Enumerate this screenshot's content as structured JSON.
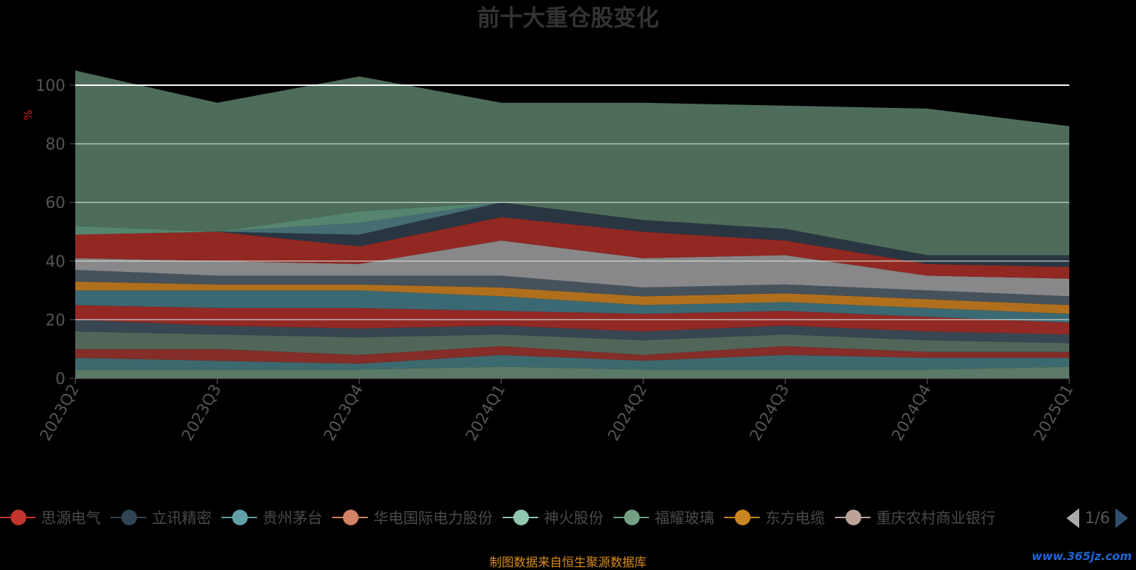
{
  "chart_data": {
    "type": "area",
    "title": "前十大重仓股变化",
    "ylabel": "%",
    "ylim": [
      0,
      100
    ],
    "yticks": [
      0,
      20,
      40,
      60,
      80,
      100
    ],
    "grid": true,
    "legend_position": "bottom",
    "x": [
      "2023Q2",
      "2023Q3",
      "2023Q4",
      "2024Q1",
      "2024Q2",
      "2024Q3",
      "2024Q4",
      "2025Q1"
    ],
    "series": [
      {
        "name": "",
        "color": "#5f7f6b",
        "values": [
          3,
          3,
          3,
          4,
          3,
          3,
          3,
          4
        ]
      },
      {
        "name": "",
        "color": "#3f6f74",
        "values": [
          4,
          3,
          2,
          4,
          3,
          5,
          4,
          3
        ]
      },
      {
        "name": "",
        "color": "#8b2f2b",
        "values": [
          3,
          4,
          3,
          3,
          2,
          3,
          2,
          2
        ]
      },
      {
        "name": "",
        "color": "#556b5e",
        "values": [
          6,
          5,
          6,
          4,
          5,
          4,
          4,
          3
        ]
      },
      {
        "name": "",
        "color": "#3b4a55",
        "values": [
          4,
          3,
          3,
          3,
          3,
          3,
          3,
          3
        ]
      },
      {
        "name": "",
        "color": "#9a2b27",
        "values": [
          5,
          6,
          7,
          5,
          6,
          5,
          5,
          4
        ]
      },
      {
        "name": "",
        "color": "#3d6f7a",
        "values": [
          5,
          6,
          6,
          5,
          3,
          3,
          3,
          3
        ]
      },
      {
        "name": "",
        "color": "#b9751f",
        "values": [
          3,
          2,
          2,
          3,
          3,
          3,
          3,
          3
        ]
      },
      {
        "name": "",
        "color": "#4a5660",
        "values": [
          4,
          3,
          3,
          4,
          3,
          3,
          3,
          3
        ]
      },
      {
        "name": "",
        "color": "#8f8e90",
        "values": [
          4,
          5,
          4,
          12,
          10,
          10,
          5,
          6
        ]
      },
      {
        "name": "",
        "color": "#9a2a24",
        "values": [
          8,
          10,
          6,
          8,
          9,
          5,
          4,
          4
        ]
      },
      {
        "name": "",
        "color": "#2b3945",
        "values": [
          0,
          0,
          4,
          5,
          4,
          4,
          3,
          4
        ]
      },
      {
        "name": "",
        "color": "#4a737a",
        "values": [
          0,
          0,
          4,
          0,
          0,
          0,
          0,
          0
        ]
      },
      {
        "name": "",
        "color": "#5a8c74",
        "values": [
          3,
          0,
          4,
          0,
          0,
          0,
          0,
          0
        ]
      },
      {
        "name": "",
        "color": "#52725f",
        "values": [
          53,
          44,
          46,
          34,
          40,
          42,
          50,
          44
        ]
      }
    ],
    "legend": [
      {
        "label": "思源电气",
        "color": "#c23531"
      },
      {
        "label": "立讯精密",
        "color": "#2f4554"
      },
      {
        "label": "贵州茅台",
        "color": "#61a0a8"
      },
      {
        "label": "华电国际电力股份",
        "color": "#d48265"
      },
      {
        "label": "神火股份",
        "color": "#91c7ae"
      },
      {
        "label": "福耀玻璃",
        "color": "#749f83"
      },
      {
        "label": "东方电缆",
        "color": "#ca8622"
      },
      {
        "label": "重庆农村商业银行",
        "color": "#bda29a"
      }
    ]
  },
  "legend_pager": {
    "text": "1/6"
  },
  "footer": {
    "note": "制图数据来自恒生聚源数据库",
    "watermark": "www.365jz.com"
  }
}
